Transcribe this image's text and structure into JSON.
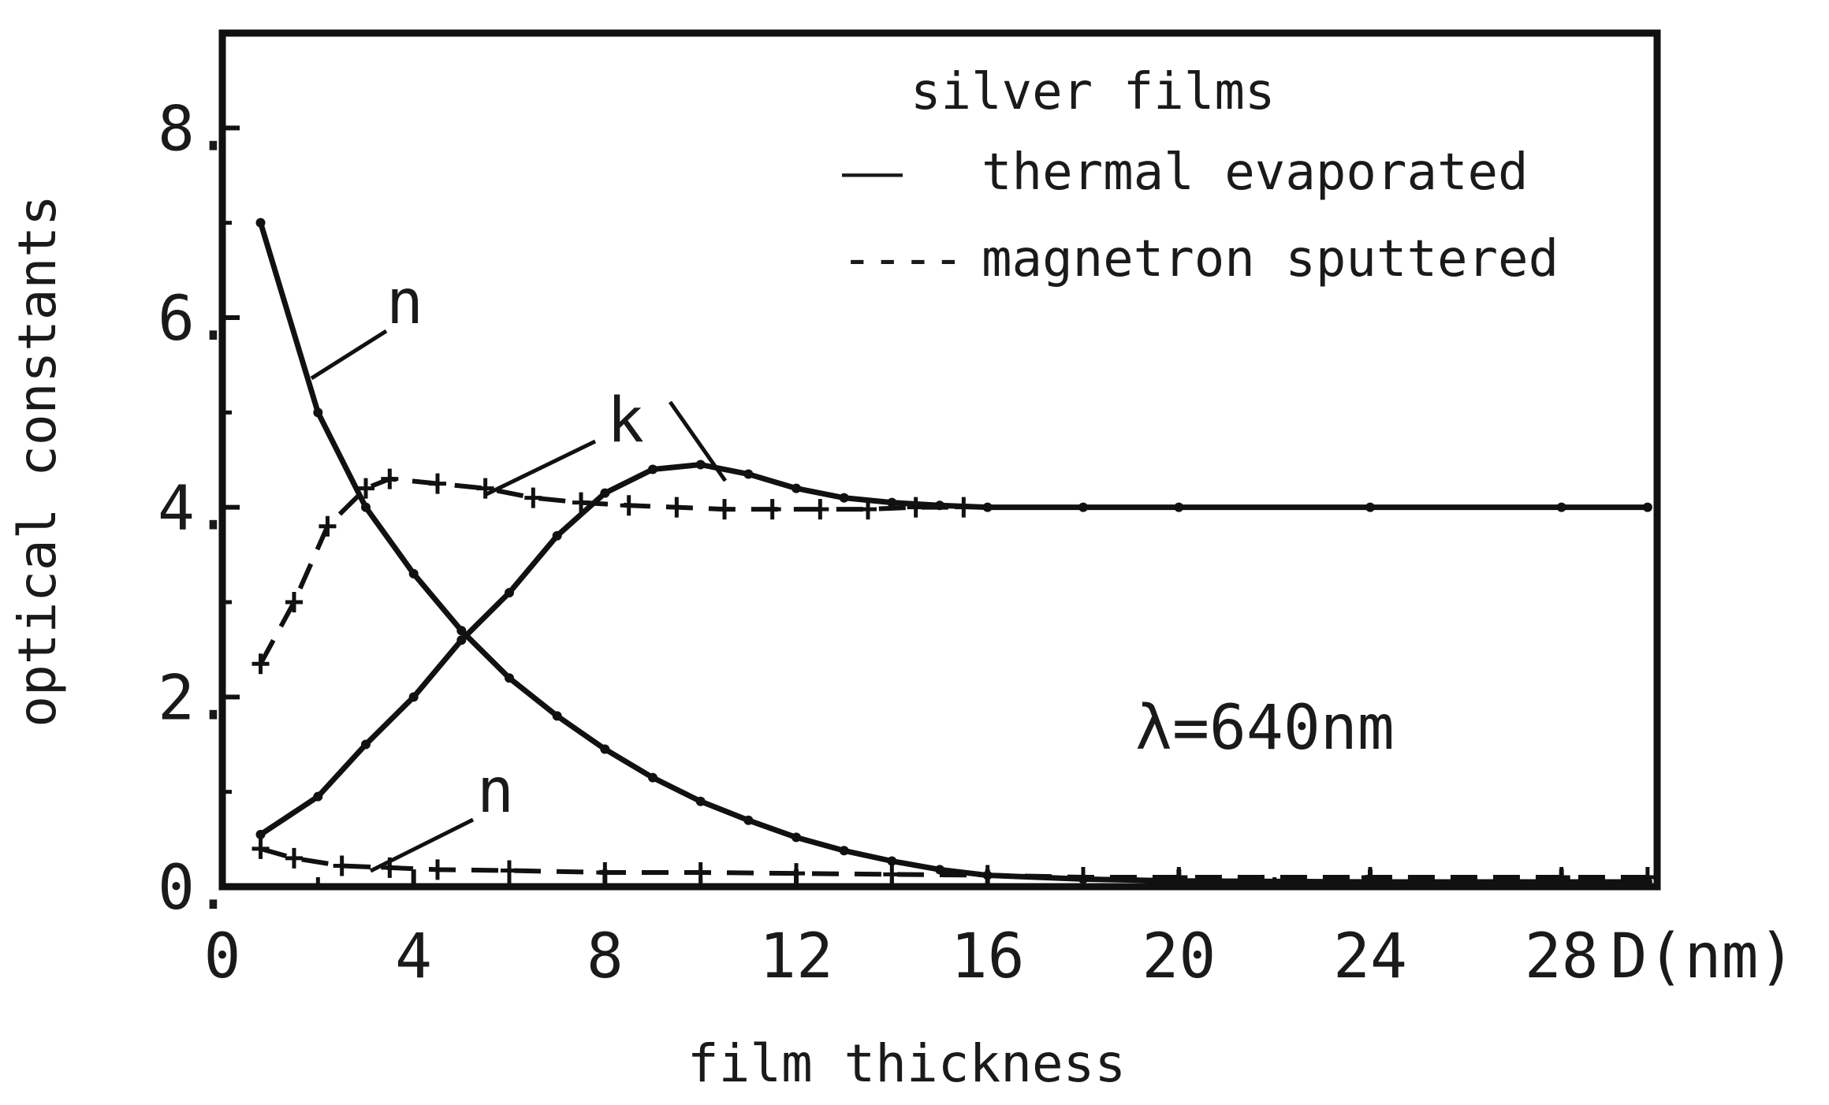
{
  "chart_data": {
    "type": "line",
    "xlabel": "film thickness",
    "xunit": "D(nm)",
    "ylabel": "optical constants",
    "xlim": [
      0,
      30
    ],
    "ylim": [
      0,
      9
    ],
    "xticks": [
      "0",
      "4",
      "8",
      "12",
      "16",
      "20",
      "24",
      "28"
    ],
    "yticks": [
      "0.",
      "2.",
      "4.",
      "6.",
      "8."
    ],
    "grid": false,
    "legend": {
      "title": "silver films",
      "placement": "top-right",
      "entries": [
        {
          "line": "——",
          "label": "thermal  evaporated"
        },
        {
          "line": "----",
          "label": "magnetron sputtered"
        }
      ]
    },
    "annotation": "λ=640nm",
    "series": [
      {
        "label": "n",
        "style": "solid",
        "x": [
          0.8,
          2,
          3,
          4,
          5,
          6,
          7,
          8,
          9,
          10,
          11,
          12,
          13,
          14,
          15,
          16,
          18,
          20,
          24,
          28,
          29.8
        ],
        "y": [
          7.0,
          5.0,
          4.0,
          3.3,
          2.7,
          2.2,
          1.8,
          1.45,
          1.15,
          0.9,
          0.7,
          0.52,
          0.38,
          0.27,
          0.18,
          0.12,
          0.08,
          0.06,
          0.05,
          0.05,
          0.05
        ]
      },
      {
        "label": "k",
        "style": "solid",
        "x": [
          0.8,
          2,
          3,
          4,
          5,
          6,
          7,
          8,
          9,
          10,
          11,
          12,
          13,
          14,
          15,
          16,
          18,
          20,
          24,
          28,
          29.8
        ],
        "y": [
          0.55,
          0.95,
          1.5,
          2.0,
          2.6,
          3.1,
          3.7,
          4.15,
          4.4,
          4.45,
          4.35,
          4.2,
          4.1,
          4.05,
          4.02,
          4.0,
          4.0,
          4.0,
          4.0,
          4.0,
          4.0
        ]
      },
      {
        "label": "k",
        "style": "dashed",
        "x": [
          0.8,
          1.5,
          2.2,
          3,
          3.5,
          4.5,
          5.5,
          6.5,
          7.5,
          8.5,
          9.5,
          10.5,
          11.5,
          12.5,
          13.5,
          14.5,
          15.5
        ],
        "y": [
          2.35,
          3.0,
          3.8,
          4.2,
          4.3,
          4.25,
          4.2,
          4.1,
          4.05,
          4.02,
          4.0,
          3.98,
          3.98,
          3.98,
          3.98,
          4.0,
          4.0
        ]
      },
      {
        "label": "n",
        "style": "dashed",
        "x": [
          0.8,
          1.5,
          2.5,
          3.5,
          4.5,
          6,
          8,
          10,
          12,
          14,
          16,
          18,
          20,
          24,
          28,
          29.8
        ],
        "y": [
          0.4,
          0.3,
          0.22,
          0.2,
          0.18,
          0.17,
          0.15,
          0.15,
          0.14,
          0.13,
          0.12,
          0.1,
          0.1,
          0.1,
          0.1,
          0.1
        ]
      }
    ]
  }
}
